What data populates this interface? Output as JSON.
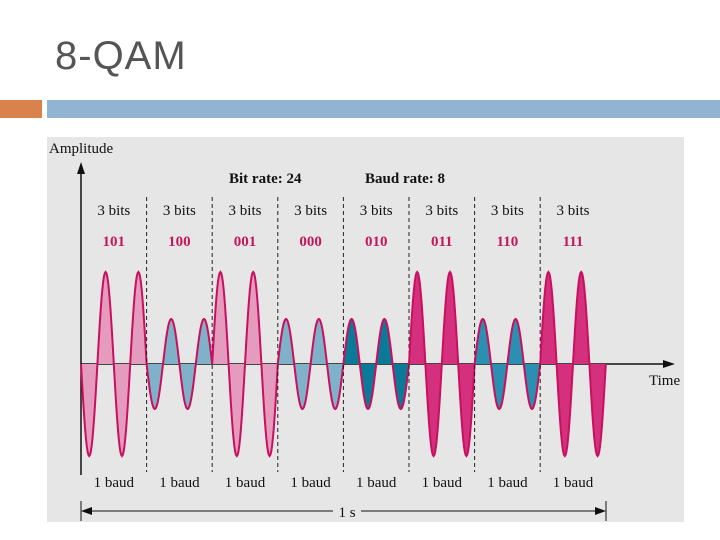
{
  "slide": {
    "title": "8-QAM"
  },
  "diagram": {
    "y_axis_label": "Amplitude",
    "x_axis_label": "Time",
    "bit_rate": "Bit rate: 24",
    "baud_rate": "Baud rate: 8",
    "duration_label": "1 s",
    "segments": [
      {
        "bits_label": "3 bits",
        "code": "101",
        "baud_label": "1 baud",
        "amp": "high",
        "phase": 180,
        "fill": "pink"
      },
      {
        "bits_label": "3 bits",
        "code": "100",
        "baud_label": "1 baud",
        "amp": "low",
        "phase": 180,
        "fill": "lightblue"
      },
      {
        "bits_label": "3 bits",
        "code": "001",
        "baud_label": "1 baud",
        "amp": "high",
        "phase": 0,
        "fill": "pink"
      },
      {
        "bits_label": "3 bits",
        "code": "000",
        "baud_label": "1 baud",
        "amp": "low",
        "phase": 0,
        "fill": "lightblue"
      },
      {
        "bits_label": "3 bits",
        "code": "010",
        "baud_label": "1 baud",
        "amp": "low",
        "phase": 0,
        "fill": "darkteal"
      },
      {
        "bits_label": "3 bits",
        "code": "011",
        "baud_label": "1 baud",
        "amp": "high",
        "phase": 0,
        "fill": "magenta"
      },
      {
        "bits_label": "3 bits",
        "code": "110",
        "baud_label": "1 baud",
        "amp": "low",
        "phase": 0,
        "fill": "teal"
      },
      {
        "bits_label": "3 bits",
        "code": "111",
        "baud_label": "1 baud",
        "amp": "high",
        "phase": 0,
        "fill": "magenta"
      }
    ]
  },
  "colors": {
    "title_text": "#555555",
    "accent_orange": "#d9824b",
    "accent_blue": "#91b4d3",
    "panel_bg": "#e6e6e6",
    "code_text": "#c2185b",
    "wave_stroke": "#c8105f",
    "fill_pink": "#e49bbd",
    "fill_lightblue": "#7fb2c8",
    "fill_darkteal": "#0a7a98",
    "fill_magenta": "#d4307e",
    "fill_teal": "#2a8fb0"
  }
}
